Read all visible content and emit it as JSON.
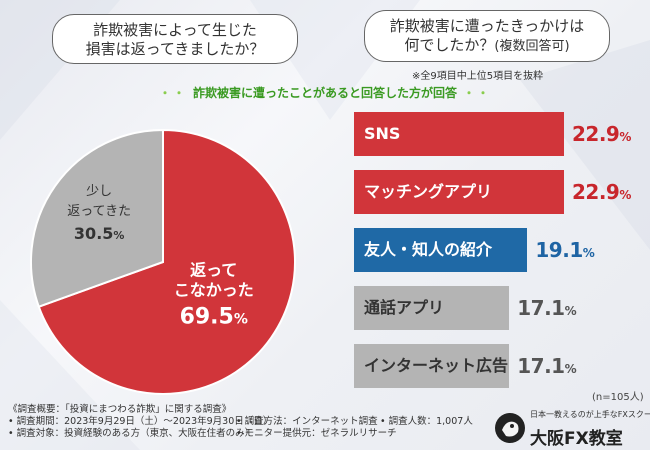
{
  "left_question": [
    "詐欺被害によって生じた",
    "損害は返ってきましたか？"
  ],
  "right_question": {
    "line1": "詐欺被害に遭ったきっかけは",
    "line2": "何でしたか？",
    "line2_suffix": "(複数回答可)"
  },
  "note": "※全9項目中上位5項目を抜粋",
  "subtitle": {
    "dots": "・・",
    "text": "詐欺被害に遭ったことがあると回答した方が回答"
  },
  "sample_size": "(n=105人)",
  "colors": {
    "red": "#d1353a",
    "blue": "#1f69a6",
    "gray": "#b4b4b4",
    "text_red": "#c8262c",
    "text_blue": "#1e64a4",
    "text_gray": "#555555"
  },
  "chart_data": [
    {
      "type": "pie",
      "title": "",
      "slices": [
        {
          "label_lines": [
            "返って",
            "こなかった"
          ],
          "value": 69.5,
          "color": "#d1353a"
        },
        {
          "label_lines": [
            "少し",
            "返ってきた"
          ],
          "value": 30.5,
          "color": "#b4b4b4"
        }
      ],
      "unit": "%"
    },
    {
      "type": "bar",
      "orientation": "horizontal",
      "categories": [
        "SNS",
        "マッチングアプリ",
        "友人・知人の紹介",
        "通話アプリ",
        "インターネット広告"
      ],
      "values": [
        22.9,
        22.9,
        19.1,
        17.1,
        17.1
      ],
      "colors": [
        "#d1353a",
        "#d1353a",
        "#1f69a6",
        "#b4b4b4",
        "#b4b4b4"
      ],
      "unit": "%"
    }
  ],
  "footer": {
    "survey": "《調査概要：「投資にまつわる詐欺」に関する調査》",
    "period": "• 調査期間：2023年9月29日（土）〜2023年9月30日（日）",
    "method": "• 調査方法：インターネット調査",
    "count": "• 調査人数：1,007人",
    "target": "• 調査対象：投資経験のある方（東京、大阪在住者のみ）",
    "provider": "• モニター提供元：ゼネラルリサーチ"
  },
  "logo": {
    "tagline": "日本一教えるのが上手なFXスクール",
    "name": "大阪FX教室"
  }
}
